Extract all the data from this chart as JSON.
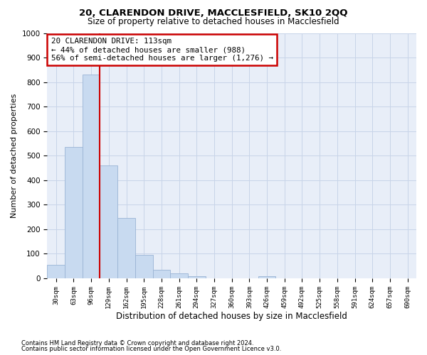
{
  "title1": "20, CLARENDON DRIVE, MACCLESFIELD, SK10 2QQ",
  "title2": "Size of property relative to detached houses in Macclesfield",
  "xlabel": "Distribution of detached houses by size in Macclesfield",
  "ylabel": "Number of detached properties",
  "footnote1": "Contains HM Land Registry data © Crown copyright and database right 2024.",
  "footnote2": "Contains public sector information licensed under the Open Government Licence v3.0.",
  "bin_labels": [
    "30sqm",
    "63sqm",
    "96sqm",
    "129sqm",
    "162sqm",
    "195sqm",
    "228sqm",
    "261sqm",
    "294sqm",
    "327sqm",
    "360sqm",
    "393sqm",
    "426sqm",
    "459sqm",
    "492sqm",
    "525sqm",
    "558sqm",
    "591sqm",
    "624sqm",
    "657sqm",
    "690sqm"
  ],
  "values": [
    55,
    535,
    830,
    460,
    245,
    95,
    35,
    20,
    10,
    0,
    0,
    0,
    10,
    0,
    0,
    0,
    0,
    0,
    0,
    0,
    0
  ],
  "bar_color": "#c8daf0",
  "bar_edge_color": "#9ab4d4",
  "line_color": "#cc0000",
  "line_x_index": 2.5,
  "ylim": [
    0,
    1000
  ],
  "yticks": [
    0,
    100,
    200,
    300,
    400,
    500,
    600,
    700,
    800,
    900,
    1000
  ],
  "annotation_line1": "20 CLARENDON DRIVE: 113sqm",
  "annotation_line2": "← 44% of detached houses are smaller (988)",
  "annotation_line3": "56% of semi-detached houses are larger (1,276) →",
  "annotation_box_color": "#ffffff",
  "annotation_box_edge": "#cc0000",
  "background_color": "#ffffff",
  "plot_bg_color": "#e8eef8",
  "grid_color": "#c8d4e8"
}
